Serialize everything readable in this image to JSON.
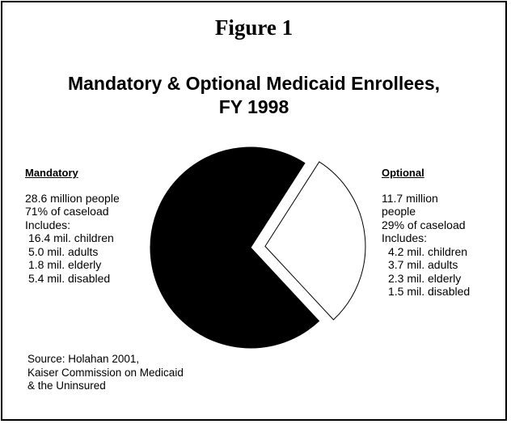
{
  "figure_label": "Figure 1",
  "title_lines": [
    "Mandatory & Optional Medicaid Enrollees,",
    "FY 1998"
  ],
  "mandatory": {
    "heading": "Mandatory",
    "lines": [
      "28.6 million people",
      "71% of caseload",
      "Includes:"
    ],
    "includes": [
      "16.4 mil. children",
      "5.0 mil. adults",
      "1.8 mil. elderly",
      "5.4 mil. disabled"
    ]
  },
  "optional": {
    "heading": "Optional",
    "lines": [
      "11.7 million",
      "people",
      "29% of caseload",
      "Includes:"
    ],
    "includes": [
      "4.2 mil. children",
      "3.7 mil. adults",
      "2.3 mil. elderly",
      "1.5 mil. disabled"
    ]
  },
  "source_lines": [
    "Source: Holahan 2001,",
    "Kaiser Commission on Medicaid",
    "& the Uninsured"
  ],
  "chart_data": {
    "type": "pie",
    "title": "Mandatory & Optional Medicaid Enrollees, FY 1998",
    "slices": [
      {
        "label": "Mandatory",
        "value": 71,
        "people_millions": 28.6,
        "fill": "#000000",
        "exploded": false
      },
      {
        "label": "Optional",
        "value": 29,
        "people_millions": 11.7,
        "fill": "#ffffff",
        "exploded": true
      }
    ]
  }
}
